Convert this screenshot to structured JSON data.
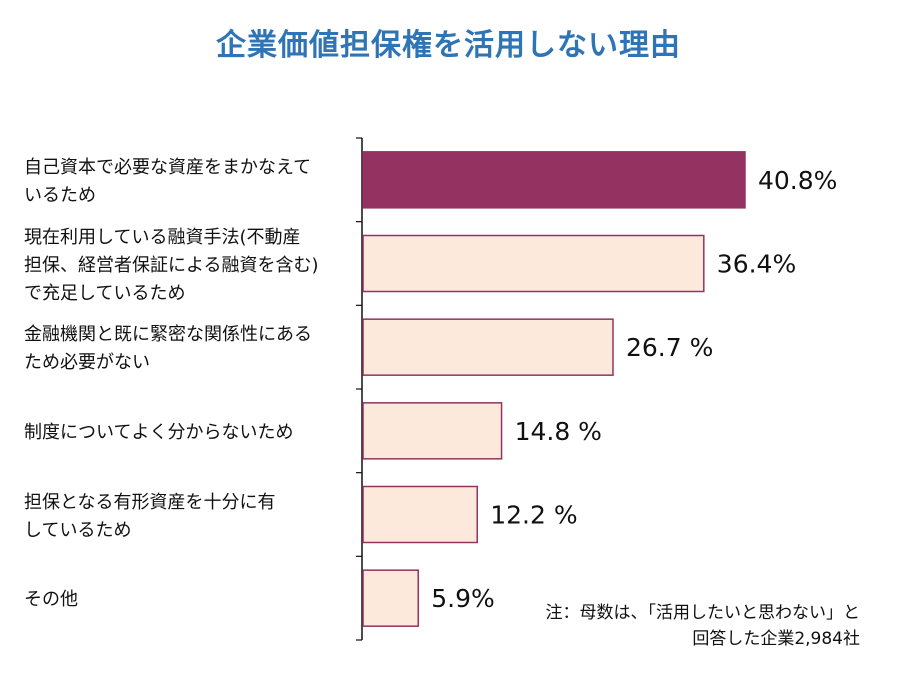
{
  "chart_data": {
    "type": "bar",
    "orientation": "horizontal",
    "title": "企業価値担保権を活用しない理由",
    "categories": [
      "自己資本で必要な資産をまかなえて\nいるため",
      "現在利用している融資手法(不動産\n担保、経営者保証による融資を含む)\nで充足しているため",
      "金融機関と既に緊密な関係性にある\nため必要がない",
      "制度についてよく分からないため",
      "担保となる有形資産を十分に有\nしているため",
      "その他"
    ],
    "values": [
      40.8,
      36.4,
      26.7,
      14.8,
      12.2,
      5.9
    ],
    "value_labels": [
      "40.8%",
      "36.4%",
      "26.7 %",
      "14.8 %",
      "12.2 %",
      "5.9%"
    ],
    "highlight_color": "#943262",
    "bar_color": "#fde9dc",
    "bar_border_color": "#943262",
    "note_lines": [
      "注：母数は、「活用したいと思わない」と",
      "回答した企業2,984社"
    ],
    "xlim": [
      0,
      55
    ]
  }
}
